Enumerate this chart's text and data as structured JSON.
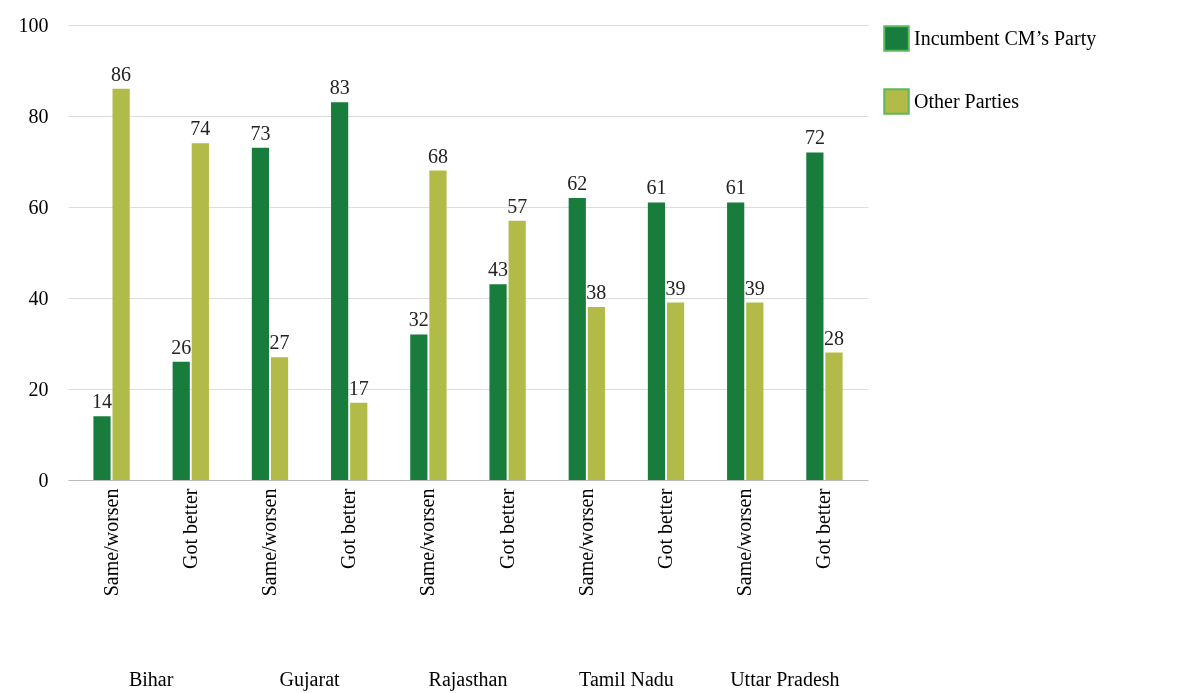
{
  "chart_data": {
    "type": "bar",
    "categories": [
      "Same/worsen",
      "Got better",
      "Same/worsen",
      "Got better",
      "Same/worsen",
      "Got better",
      "Same/worsen",
      "Got better",
      "Same/worsen",
      "Got better"
    ],
    "series": [
      {
        "name": "Incumbent CM’s Party",
        "color": "#187c3c",
        "values": [
          14,
          26,
          73,
          83,
          32,
          43,
          62,
          61,
          61,
          72
        ]
      },
      {
        "name": "Other Parties",
        "color": "#b2bb47",
        "values": [
          86,
          74,
          27,
          17,
          68,
          57,
          38,
          39,
          39,
          28
        ]
      }
    ],
    "annotations": [
      "Bihar",
      "Gujarat",
      "Rajasthan",
      "Tamil Nadu",
      "Uttar Pradesh"
    ],
    "ylim": [
      0,
      100
    ],
    "yticks": [
      0,
      20,
      40,
      60,
      80,
      100
    ],
    "grid": "y",
    "legend": "right",
    "data_labels": true
  }
}
